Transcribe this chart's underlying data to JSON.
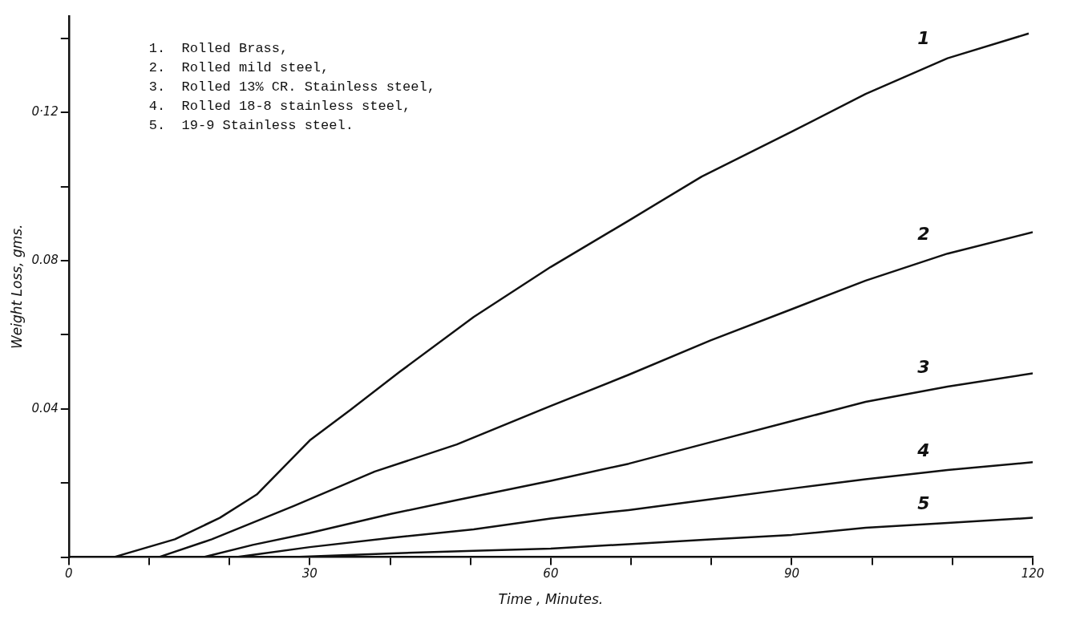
{
  "chart_data": {
    "type": "line",
    "xlabel": "Time , Minutes.",
    "ylabel": "Weight Loss, gms.",
    "xlim": [
      0,
      120
    ],
    "ylim": [
      0,
      0.146
    ],
    "xticks": [
      0,
      {
        "value": 10,
        "label": null
      },
      {
        "value": 20,
        "label": null
      },
      30,
      {
        "value": 40,
        "label": null
      },
      {
        "value": 50,
        "label": null
      },
      60,
      {
        "value": 70,
        "label": null
      },
      {
        "value": 80,
        "label": null
      },
      90,
      {
        "value": 100,
        "label": null
      },
      {
        "value": 110,
        "label": null
      },
      120
    ],
    "yticks": [
      {
        "value": 0,
        "label": null
      },
      {
        "value": 0.02,
        "label": null
      },
      {
        "value": 0.04,
        "label": "0.04"
      },
      {
        "value": 0.06,
        "label": null
      },
      {
        "value": 0.08,
        "label": "0.08"
      },
      {
        "value": 0.1,
        "label": null
      },
      {
        "value": 0.12,
        "label": "0·12"
      },
      {
        "value": 0.14,
        "label": null
      }
    ],
    "grid": false,
    "legend": false,
    "marker": "none",
    "line_style": "solid",
    "series": [
      {
        "name": "1",
        "color": "#111111",
        "x": [
          5.6,
          13.2,
          18.8,
          23.4,
          30,
          35.1,
          41.2,
          50.4,
          60,
          69.7,
          78.8,
          90,
          99.2,
          109.4,
          119.5
        ],
        "values": [
          0,
          0.0048,
          0.0106,
          0.0169,
          0.0315,
          0.0398,
          0.05,
          0.0648,
          0.0783,
          0.0908,
          0.1027,
          0.1148,
          0.125,
          0.1346,
          0.1413
        ]
      },
      {
        "name": "2",
        "color": "#111111",
        "x": [
          11.2,
          17.8,
          28,
          38.1,
          48.3,
          60,
          69.7,
          79.9,
          90,
          99.2,
          109.4,
          120
        ],
        "values": [
          0,
          0.0048,
          0.0138,
          0.0231,
          0.0304,
          0.0408,
          0.0492,
          0.0585,
          0.0669,
          0.0746,
          0.0819,
          0.0877
        ]
      },
      {
        "name": "3",
        "color": "#111111",
        "x": [
          16.8,
          22.9,
          30,
          40.2,
          48.3,
          60,
          69.7,
          79.9,
          90,
          99.2,
          109.4,
          120
        ],
        "values": [
          0,
          0.0033,
          0.0065,
          0.0117,
          0.0154,
          0.0206,
          0.0252,
          0.031,
          0.0367,
          0.0419,
          0.046,
          0.0496
        ]
      },
      {
        "name": "4",
        "color": "#111111",
        "x": [
          20.9,
          30,
          40.2,
          50.4,
          60,
          69.7,
          79.9,
          90,
          99.2,
          109.4,
          120
        ],
        "values": [
          0,
          0.0027,
          0.0052,
          0.0075,
          0.0104,
          0.0127,
          0.0156,
          0.0185,
          0.021,
          0.0235,
          0.0256
        ]
      },
      {
        "name": "5",
        "color": "#111111",
        "x": [
          28,
          40.2,
          50.4,
          60,
          69.7,
          79.9,
          90,
          99.2,
          109.4,
          120
        ],
        "values": [
          0,
          0.001,
          0.0017,
          0.0023,
          0.0035,
          0.0048,
          0.006,
          0.0079,
          0.0092,
          0.0106
        ]
      }
    ],
    "annotations": [
      "1.  Rolled Brass,",
      "2.  Rolled mild steel,",
      "3.  Rolled 13% CR. Stainless steel,",
      "4.  Rolled 18-8 stainless steel,",
      "5.  19-9 Stainless steel."
    ]
  }
}
